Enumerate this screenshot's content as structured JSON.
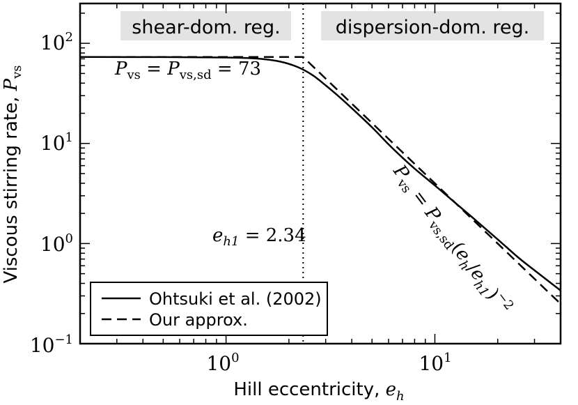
{
  "chart_data": {
    "type": "line",
    "xlabel_text": "Hill eccentricity, ",
    "xlabel_var": "e",
    "xlabel_sub": "h",
    "ylabel_text": "Viscous stirring rate, ",
    "ylabel_var": "P",
    "ylabel_sub": "vs",
    "x_scale": "log",
    "y_scale": "log",
    "xlim": [
      0.2,
      40
    ],
    "ylim": [
      0.1,
      250
    ],
    "x_ticks": [
      {
        "value": 1,
        "base": "10",
        "exp": "0"
      },
      {
        "value": 10,
        "base": "10",
        "exp": "1"
      }
    ],
    "y_ticks": [
      {
        "value": 0.1,
        "base": "10",
        "exp": "−1"
      },
      {
        "value": 1,
        "base": "10",
        "exp": "0"
      },
      {
        "value": 10,
        "base": "10",
        "exp": "1"
      },
      {
        "value": 100,
        "base": "10",
        "exp": "2"
      }
    ],
    "regions": [
      {
        "label": "shear-dom. reg."
      },
      {
        "label": "dispersion-dom. reg."
      }
    ],
    "vline": {
      "x": 2.34
    },
    "series": [
      {
        "name": "Ohtsuki et al. (2002)",
        "style": "solid",
        "points": [
          [
            0.2,
            73
          ],
          [
            0.5,
            72.9
          ],
          [
            1.0,
            72.2
          ],
          [
            1.4,
            70.5
          ],
          [
            1.8,
            66
          ],
          [
            2.2,
            58
          ],
          [
            2.6,
            48
          ],
          [
            3.0,
            38
          ],
          [
            3.5,
            29
          ],
          [
            4.0,
            22.5
          ],
          [
            5.0,
            14.5
          ],
          [
            6.0,
            9.8
          ],
          [
            7.0,
            7.2
          ],
          [
            8.0,
            5.6
          ],
          [
            10.0,
            3.8
          ],
          [
            12.0,
            2.75
          ],
          [
            15.0,
            1.85
          ],
          [
            20.0,
            1.1
          ],
          [
            25.0,
            0.73
          ],
          [
            30.0,
            0.54
          ],
          [
            40.0,
            0.34
          ]
        ]
      },
      {
        "name": "Our approx.",
        "style": "dashed",
        "piecewise": {
          "plateau": 73,
          "break_x": 2.34,
          "slope": -2
        }
      }
    ],
    "annotations": {
      "plateau": {
        "lhs": "P",
        "lhs_sub": "vs",
        "eq1": " = ",
        "rhs": "P",
        "rhs_sub": "vs,sd",
        "eq2": " = 73"
      },
      "eh1": {
        "var": "e",
        "sub": "h1",
        "rest": " = 2.34"
      },
      "power": {
        "lhs": "P",
        "lhs_sub": "vs",
        "eq": " = ",
        "rhs": "P",
        "rhs_sub": "vs,sd",
        "paren_open": "(",
        "num": "e",
        "num_sub": "h",
        "slash": "/",
        "den": "e",
        "den_sub": "h1",
        "paren_close": ")",
        "exp": "−2"
      }
    },
    "legend": {
      "placement": "lower-left"
    }
  }
}
